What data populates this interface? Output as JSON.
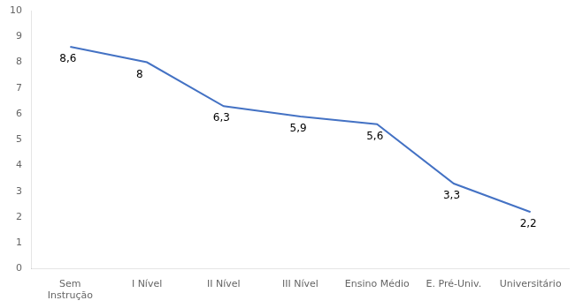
{
  "chart_data": {
    "type": "line",
    "categories": [
      "Sem\nInstrução",
      "I Nível",
      "II Nível",
      "III Nível",
      "Ensino Médio",
      "E. Pré-Univ.",
      "Universitário"
    ],
    "values": [
      8.6,
      8.0,
      6.3,
      5.9,
      5.6,
      3.3,
      2.2
    ],
    "value_labels": [
      "8,6",
      "8",
      "6,3",
      "5,9",
      "5,6",
      "3,3",
      "2,2"
    ],
    "data_labels": true,
    "color": "#4472C4",
    "ylim": [
      0,
      10
    ],
    "yticks": [
      0,
      1,
      2,
      3,
      4,
      5,
      6,
      7,
      8,
      9,
      10
    ],
    "grid": false
  }
}
